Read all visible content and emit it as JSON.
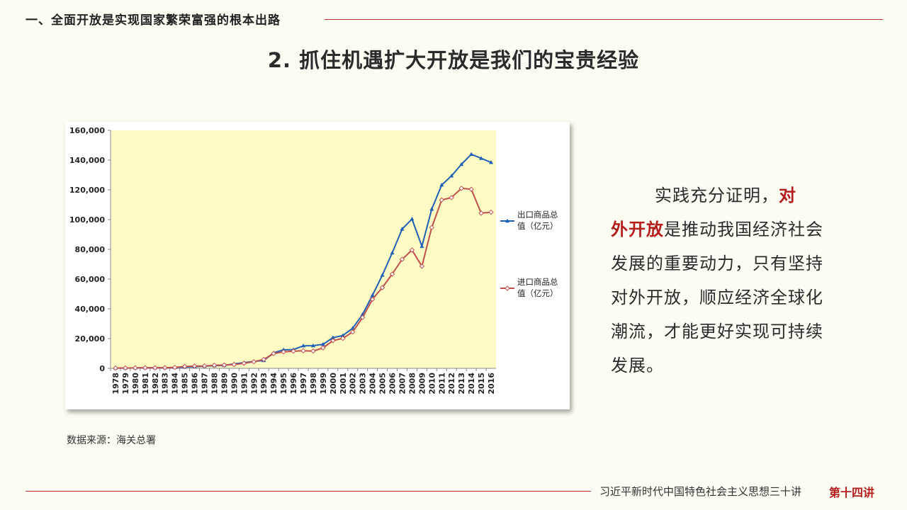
{
  "header": {
    "section_title": "一、全面开放是实现国家繁荣富强的根本出路",
    "page_title": "2. 抓住机遇扩大开放是我们的宝贵经验"
  },
  "source_note": "数据来源：海关总署",
  "body": {
    "part1": "实践充分证明，",
    "emph_a": "对",
    "emph_b": "外开放",
    "part2": "是推动我国经济社会发展的重要动力，只有坚持对外开放，顺应经济全球化潮流，才能更好实现可持续发展。"
  },
  "footer": {
    "series": "习近平新时代中国特色社会主义思想三十讲",
    "lecture": "第十四讲"
  },
  "colors": {
    "accent_red": "#b51c1c",
    "rule_red": "#b8312f",
    "plot_bg": "#fcfbc4",
    "export_line": "#1f5fb5",
    "import_line": "#c0504d"
  },
  "chart_data": {
    "type": "line",
    "title": "",
    "xlabel": "",
    "ylabel": "",
    "ylim": [
      0,
      160000
    ],
    "y_ticks": [
      "0",
      "20,000",
      "40,000",
      "60,000",
      "80,000",
      "100,000",
      "120,000",
      "140,000",
      "160,000"
    ],
    "grid": false,
    "legend_position": "right",
    "x": [
      "1978",
      "1979",
      "1980",
      "1981",
      "1982",
      "1983",
      "1984",
      "1985",
      "1986",
      "1987",
      "1988",
      "1989",
      "1990",
      "1991",
      "1992",
      "1993",
      "1994",
      "1995",
      "1996",
      "1997",
      "1998",
      "1999",
      "2000",
      "2001",
      "2002",
      "2003",
      "2004",
      "2005",
      "2006",
      "2007",
      "2008",
      "2009",
      "2010",
      "2011",
      "2012",
      "2013",
      "2014",
      "2015",
      "2016"
    ],
    "series": [
      {
        "name": "出口商品总值（亿元）",
        "legend_lines": [
          "出口商品总",
          "值（亿元）"
        ],
        "color": "#1f5fb5",
        "marker": "triangle",
        "values": [
          168,
          212,
          271,
          368,
          414,
          438,
          581,
          809,
          1082,
          1470,
          1767,
          1956,
          2986,
          3827,
          4676,
          5285,
          10422,
          12452,
          12576,
          15161,
          15224,
          16160,
          20634,
          22024,
          26948,
          36288,
          49103,
          62648,
          77598,
          93627,
          100395,
          82030,
          107023,
          123241,
          129359,
          137131,
          143884,
          141167,
          138419
        ]
      },
      {
        "name": "进口商品总值（亿元）",
        "legend_lines": [
          "进口商品总",
          "值（亿元）"
        ],
        "color": "#c0504d",
        "marker": "diamond",
        "values": [
          187,
          243,
          299,
          368,
          358,
          422,
          620,
          1258,
          1498,
          1614,
          2055,
          2200,
          2574,
          3399,
          4443,
          5986,
          9960,
          11048,
          11557,
          11807,
          11626,
          13736,
          18639,
          20159,
          24430,
          34196,
          46436,
          54274,
          63377,
          73297,
          79527,
          68618,
          94700,
          113161,
          114801,
          121038,
          120358,
          104336,
          104967
        ]
      }
    ]
  }
}
